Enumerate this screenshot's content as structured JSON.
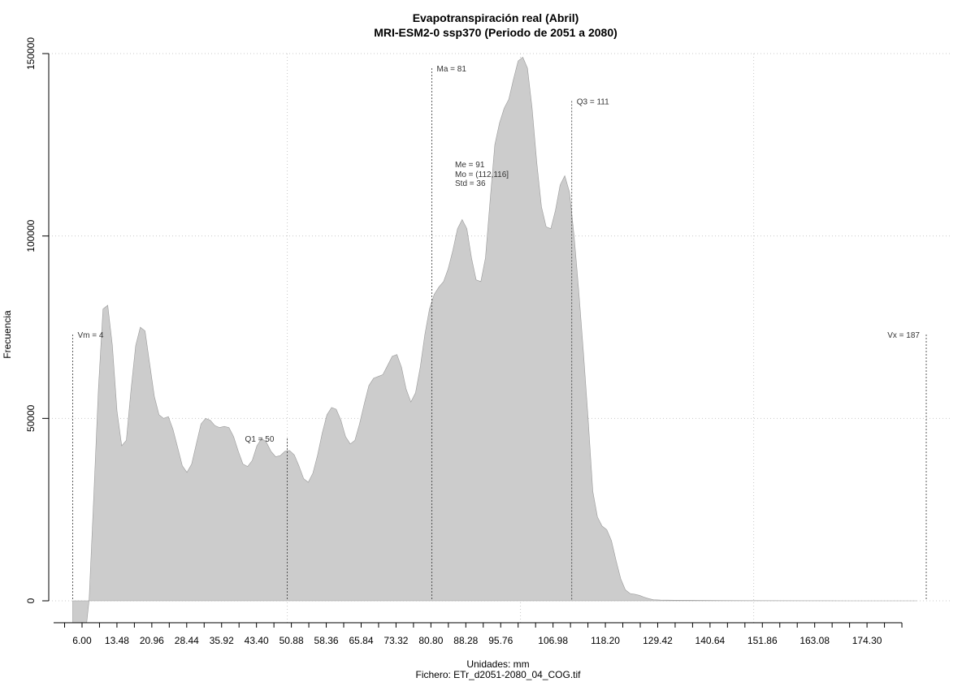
{
  "chart_data": {
    "type": "area",
    "title": "Evapotranspiración real (Abril)",
    "subtitle": "MRI-ESM2-0 ssp370 (Periodo de 2051 a 2080)",
    "xlabel": "Unidades: mm",
    "ylabel": "Frecuencia",
    "caption": "Fichero: ETr_d2051-2080_04_COG.tif",
    "xlim": [
      4,
      187
    ],
    "ylim": [
      0,
      150000
    ],
    "grid": true,
    "x_ticks": [
      6.0,
      13.48,
      20.96,
      28.44,
      35.92,
      43.4,
      50.88,
      58.36,
      65.84,
      73.32,
      80.8,
      88.28,
      95.76,
      106.98,
      118.2,
      129.42,
      140.64,
      151.86,
      163.08,
      174.3
    ],
    "x_tick_labels": [
      "6.00",
      "13.48",
      "20.96",
      "28.44",
      "35.92",
      "43.40",
      "50.88",
      "58.36",
      "65.84",
      "73.32",
      "80.80",
      "88.28",
      "95.76",
      "106.98",
      "118.20",
      "129.42",
      "140.64",
      "151.86",
      "163.08",
      "174.30"
    ],
    "y_ticks": [
      0,
      50000,
      100000,
      150000
    ],
    "y_tick_labels": [
      "0",
      "50000",
      "100000",
      "150000"
    ],
    "series": [
      {
        "color": "#cccccc",
        "points": [
          [
            4,
            -6000
          ],
          [
            7,
            -6000
          ],
          [
            7.5,
            0
          ],
          [
            8.5,
            28000
          ],
          [
            9.5,
            58000
          ],
          [
            10.5,
            80000
          ],
          [
            11.5,
            81000
          ],
          [
            12.5,
            70000
          ],
          [
            13.5,
            52000
          ],
          [
            14.5,
            42500
          ],
          [
            15.5,
            44000
          ],
          [
            16.5,
            58000
          ],
          [
            17.5,
            70000
          ],
          [
            18.5,
            75000
          ],
          [
            19.5,
            74000
          ],
          [
            20.5,
            65000
          ],
          [
            21.5,
            56000
          ],
          [
            22.5,
            51000
          ],
          [
            23.5,
            50000
          ],
          [
            24.5,
            50500
          ],
          [
            25.5,
            47000
          ],
          [
            26.5,
            42000
          ],
          [
            27.5,
            37000
          ],
          [
            28.5,
            35200
          ],
          [
            29.5,
            37500
          ],
          [
            30.5,
            43000
          ],
          [
            31.5,
            48500
          ],
          [
            32.5,
            50000
          ],
          [
            33.5,
            49500
          ],
          [
            34.5,
            48000
          ],
          [
            35.5,
            47500
          ],
          [
            36.5,
            47800
          ],
          [
            37.5,
            47500
          ],
          [
            38.5,
            45000
          ],
          [
            39.5,
            41000
          ],
          [
            40.5,
            37500
          ],
          [
            41.5,
            36800
          ],
          [
            42.5,
            38500
          ],
          [
            43.5,
            42500
          ],
          [
            44.5,
            44500
          ],
          [
            45.5,
            43500
          ],
          [
            46.5,
            41000
          ],
          [
            47.5,
            39500
          ],
          [
            48.5,
            39800
          ],
          [
            49.5,
            41000
          ],
          [
            50.5,
            41200
          ],
          [
            51.5,
            40000
          ],
          [
            52.5,
            37000
          ],
          [
            53.5,
            33500
          ],
          [
            54.5,
            32500
          ],
          [
            55.5,
            35000
          ],
          [
            56.5,
            40000
          ],
          [
            57.5,
            46000
          ],
          [
            58.5,
            51000
          ],
          [
            59.5,
            53000
          ],
          [
            60.5,
            52500
          ],
          [
            61.5,
            49500
          ],
          [
            62.5,
            45000
          ],
          [
            63.5,
            43000
          ],
          [
            64.5,
            44000
          ],
          [
            65.5,
            48500
          ],
          [
            66.5,
            54000
          ],
          [
            67.5,
            59000
          ],
          [
            68.5,
            61000
          ],
          [
            69.5,
            61500
          ],
          [
            70.5,
            62000
          ],
          [
            71.5,
            64500
          ],
          [
            72.5,
            67000
          ],
          [
            73.5,
            67500
          ],
          [
            74.5,
            64000
          ],
          [
            75.5,
            58000
          ],
          [
            76.5,
            54500
          ],
          [
            77.5,
            57000
          ],
          [
            78.5,
            64000
          ],
          [
            79.5,
            73000
          ],
          [
            80.5,
            80000
          ],
          [
            81.5,
            84000
          ],
          [
            82.5,
            86000
          ],
          [
            83.5,
            87500
          ],
          [
            84.5,
            91000
          ],
          [
            85.5,
            96000
          ],
          [
            86.5,
            102000
          ],
          [
            87.5,
            104500
          ],
          [
            88.5,
            102000
          ],
          [
            89.5,
            94000
          ],
          [
            90.5,
            88000
          ],
          [
            91.5,
            87500
          ],
          [
            92.5,
            94000
          ],
          [
            93.5,
            110000
          ],
          [
            94.5,
            125000
          ],
          [
            95.5,
            131000
          ],
          [
            96.5,
            135000
          ],
          [
            97.5,
            137500
          ],
          [
            98.5,
            143000
          ],
          [
            99.5,
            148000
          ],
          [
            100.5,
            149000
          ],
          [
            101.5,
            146000
          ],
          [
            102.5,
            135000
          ],
          [
            103.5,
            120000
          ],
          [
            104.5,
            108000
          ],
          [
            105.5,
            102500
          ],
          [
            106.5,
            102000
          ],
          [
            107.5,
            107000
          ],
          [
            108.5,
            114000
          ],
          [
            109.5,
            116500
          ],
          [
            110.5,
            112000
          ],
          [
            111.5,
            100000
          ],
          [
            112.5,
            85000
          ],
          [
            113.5,
            68000
          ],
          [
            114.5,
            50000
          ],
          [
            115.5,
            30000
          ],
          [
            116.5,
            23000
          ],
          [
            117.5,
            20500
          ],
          [
            118.5,
            19500
          ],
          [
            119.5,
            16500
          ],
          [
            120.5,
            11000
          ],
          [
            121.5,
            6000
          ],
          [
            122.5,
            3000
          ],
          [
            123.5,
            2000
          ],
          [
            124.5,
            1800
          ],
          [
            125.5,
            1500
          ],
          [
            126.5,
            1000
          ],
          [
            127.5,
            600
          ],
          [
            128.5,
            300
          ],
          [
            130,
            200
          ],
          [
            133,
            150
          ],
          [
            140,
            80
          ],
          [
            150,
            40
          ],
          [
            160,
            20
          ],
          [
            170,
            10
          ],
          [
            180,
            5
          ],
          [
            185,
            0
          ]
        ]
      }
    ],
    "annotations": [
      {
        "label": "Vm = 4",
        "x": 4,
        "y": 73000
      },
      {
        "label": "Q1 = 50",
        "x": 50,
        "y": 44500
      },
      {
        "label": "Ma = 81",
        "x": 81,
        "y": 146000
      },
      {
        "label": "Q3 = 111",
        "x": 111,
        "y": 137000
      },
      {
        "label": "Vx = 187",
        "x": 187,
        "y": 73000
      }
    ],
    "stats": [
      "Me = 91",
      "Mo = (112,116]",
      "Std = 36"
    ]
  }
}
